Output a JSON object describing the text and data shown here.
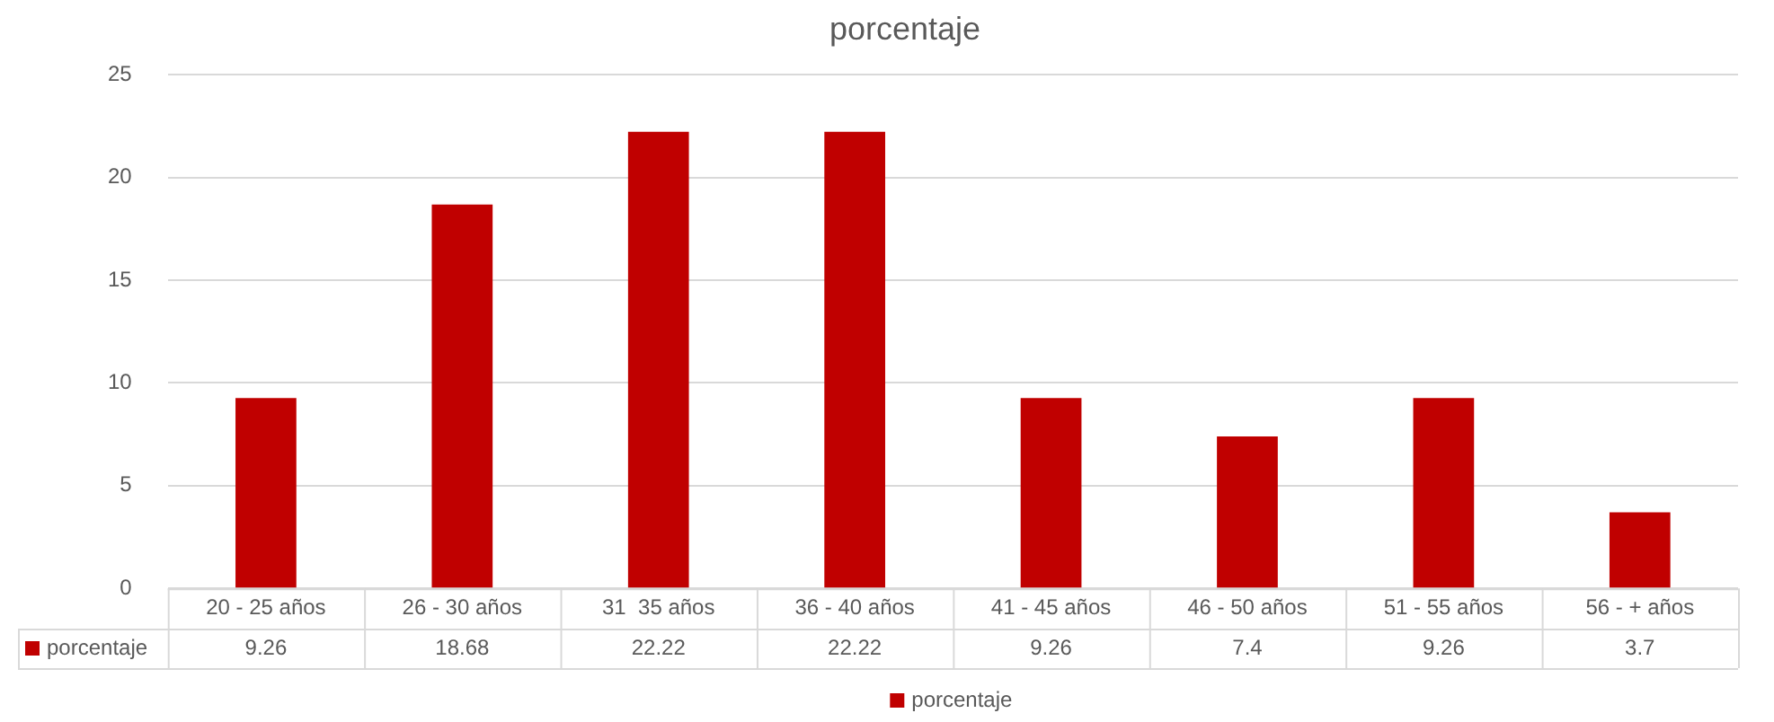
{
  "chart_data": {
    "type": "bar",
    "title": "porcentaje",
    "categories": [
      "20 - 25 años",
      "26 - 30 años",
      "31  35 años",
      "36 - 40 años",
      "41 - 45 años",
      "46 - 50 años",
      "51 - 55 años",
      "56 - + años"
    ],
    "series": [
      {
        "name": "porcentaje",
        "color": "#c00000",
        "values": [
          9.26,
          18.68,
          22.22,
          22.22,
          9.26,
          7.4,
          9.26,
          3.7
        ]
      }
    ],
    "ylim": [
      0,
      25
    ],
    "yticks": [
      0,
      5,
      10,
      15,
      20,
      25
    ],
    "grid": "y",
    "legend": "bottom",
    "data_labels": true
  }
}
